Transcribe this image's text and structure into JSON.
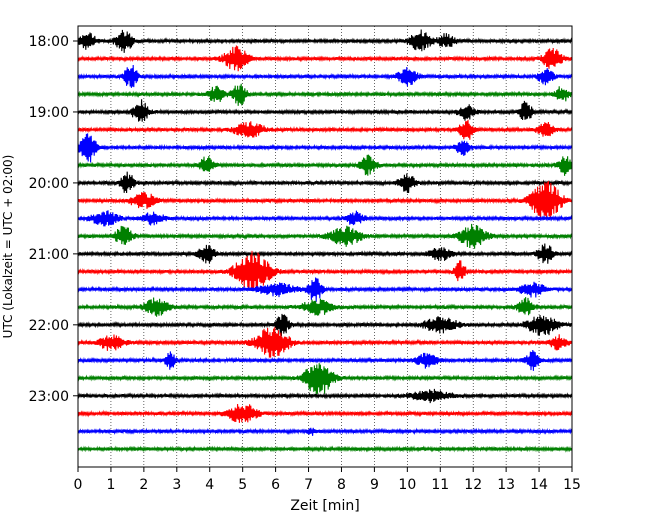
{
  "chart_data": {
    "type": "line",
    "title": "",
    "xlabel": "Zeit  [min]",
    "ylabel": "UTC (Lokalzeit = UTC + 02:00)",
    "xlim": [
      0,
      15
    ],
    "x_ticks": [
      0,
      1,
      2,
      3,
      4,
      5,
      6,
      7,
      8,
      9,
      10,
      11,
      12,
      13,
      14,
      15
    ],
    "y_ticks": [
      "18:00",
      "19:00",
      "20:00",
      "21:00",
      "22:00",
      "23:00"
    ],
    "row_interval_minutes": 15,
    "grid": "vertical dotted",
    "trace_colors": [
      "#000000",
      "#ff0000",
      "#0000ff",
      "#008000"
    ],
    "rows": [
      {
        "start": "18:00",
        "color": "#000000",
        "events": [
          {
            "t": 0.3,
            "a": 0.4,
            "w": 0.3
          },
          {
            "t": 1.4,
            "a": 0.55,
            "w": 0.3
          },
          {
            "t": 10.4,
            "a": 0.5,
            "w": 0.4
          },
          {
            "t": 11.2,
            "a": 0.35,
            "w": 0.3
          }
        ]
      },
      {
        "start": "18:15",
        "color": "#ff0000",
        "events": [
          {
            "t": 4.8,
            "a": 0.55,
            "w": 0.45
          },
          {
            "t": 14.4,
            "a": 0.5,
            "w": 0.35
          }
        ]
      },
      {
        "start": "18:30",
        "color": "#0000ff",
        "events": [
          {
            "t": 1.6,
            "a": 0.55,
            "w": 0.25
          },
          {
            "t": 10.0,
            "a": 0.45,
            "w": 0.35
          },
          {
            "t": 14.2,
            "a": 0.35,
            "w": 0.3
          }
        ]
      },
      {
        "start": "18:45",
        "color": "#008000",
        "events": [
          {
            "t": 4.2,
            "a": 0.4,
            "w": 0.3
          },
          {
            "t": 4.9,
            "a": 0.55,
            "w": 0.25
          },
          {
            "t": 14.7,
            "a": 0.4,
            "w": 0.25
          }
        ]
      },
      {
        "start": "19:00",
        "color": "#000000",
        "events": [
          {
            "t": 1.9,
            "a": 0.55,
            "w": 0.3
          },
          {
            "t": 11.8,
            "a": 0.35,
            "w": 0.3
          },
          {
            "t": 13.6,
            "a": 0.6,
            "w": 0.2
          }
        ]
      },
      {
        "start": "19:15",
        "color": "#ff0000",
        "events": [
          {
            "t": 5.2,
            "a": 0.35,
            "w": 0.55
          },
          {
            "t": 11.8,
            "a": 0.55,
            "w": 0.25
          },
          {
            "t": 14.2,
            "a": 0.35,
            "w": 0.3
          }
        ]
      },
      {
        "start": "19:30",
        "color": "#0000ff",
        "events": [
          {
            "t": 0.3,
            "a": 0.75,
            "w": 0.3
          },
          {
            "t": 11.7,
            "a": 0.4,
            "w": 0.25
          }
        ]
      },
      {
        "start": "19:45",
        "color": "#008000",
        "events": [
          {
            "t": 3.9,
            "a": 0.45,
            "w": 0.25
          },
          {
            "t": 8.8,
            "a": 0.45,
            "w": 0.3
          },
          {
            "t": 14.8,
            "a": 0.5,
            "w": 0.25
          }
        ]
      },
      {
        "start": "20:00",
        "color": "#000000",
        "events": [
          {
            "t": 1.5,
            "a": 0.5,
            "w": 0.25
          },
          {
            "t": 10.0,
            "a": 0.45,
            "w": 0.3
          }
        ]
      },
      {
        "start": "20:15",
        "color": "#ff0000",
        "events": [
          {
            "t": 2.0,
            "a": 0.35,
            "w": 0.5
          },
          {
            "t": 14.2,
            "a": 0.95,
            "w": 0.55
          }
        ]
      },
      {
        "start": "20:30",
        "color": "#0000ff",
        "events": [
          {
            "t": 0.8,
            "a": 0.35,
            "w": 0.5
          },
          {
            "t": 2.3,
            "a": 0.3,
            "w": 0.4
          },
          {
            "t": 8.4,
            "a": 0.3,
            "w": 0.35
          }
        ]
      },
      {
        "start": "20:45",
        "color": "#008000",
        "events": [
          {
            "t": 1.4,
            "a": 0.55,
            "w": 0.3
          },
          {
            "t": 8.1,
            "a": 0.45,
            "w": 0.6
          },
          {
            "t": 12.0,
            "a": 0.55,
            "w": 0.5
          }
        ]
      },
      {
        "start": "21:00",
        "color": "#000000",
        "events": [
          {
            "t": 3.9,
            "a": 0.45,
            "w": 0.3
          },
          {
            "t": 11.0,
            "a": 0.3,
            "w": 0.4
          },
          {
            "t": 14.2,
            "a": 0.45,
            "w": 0.3
          }
        ]
      },
      {
        "start": "21:15",
        "color": "#ff0000",
        "events": [
          {
            "t": 5.3,
            "a": 0.95,
            "w": 0.65
          },
          {
            "t": 11.6,
            "a": 0.5,
            "w": 0.2
          }
        ]
      },
      {
        "start": "21:30",
        "color": "#0000ff",
        "events": [
          {
            "t": 6.0,
            "a": 0.3,
            "w": 0.7
          },
          {
            "t": 7.2,
            "a": 0.6,
            "w": 0.25
          },
          {
            "t": 13.8,
            "a": 0.35,
            "w": 0.45
          }
        ]
      },
      {
        "start": "21:45",
        "color": "#008000",
        "events": [
          {
            "t": 2.4,
            "a": 0.45,
            "w": 0.45
          },
          {
            "t": 7.3,
            "a": 0.35,
            "w": 0.6
          },
          {
            "t": 13.6,
            "a": 0.45,
            "w": 0.3
          }
        ]
      },
      {
        "start": "22:00",
        "color": "#000000",
        "events": [
          {
            "t": 6.2,
            "a": 0.5,
            "w": 0.25
          },
          {
            "t": 11.0,
            "a": 0.4,
            "w": 0.6
          },
          {
            "t": 14.1,
            "a": 0.5,
            "w": 0.55
          }
        ]
      },
      {
        "start": "22:15",
        "color": "#ff0000",
        "events": [
          {
            "t": 1.0,
            "a": 0.35,
            "w": 0.5
          },
          {
            "t": 5.9,
            "a": 0.75,
            "w": 0.6
          },
          {
            "t": 14.6,
            "a": 0.35,
            "w": 0.3
          }
        ]
      },
      {
        "start": "22:30",
        "color": "#0000ff",
        "events": [
          {
            "t": 2.8,
            "a": 0.4,
            "w": 0.2
          },
          {
            "t": 10.6,
            "a": 0.35,
            "w": 0.4
          },
          {
            "t": 13.8,
            "a": 0.45,
            "w": 0.25
          }
        ]
      },
      {
        "start": "22:45",
        "color": "#008000",
        "events": [
          {
            "t": 7.3,
            "a": 0.85,
            "w": 0.5
          }
        ]
      },
      {
        "start": "23:00",
        "color": "#000000",
        "events": [
          {
            "t": 10.7,
            "a": 0.3,
            "w": 0.7
          }
        ]
      },
      {
        "start": "23:15",
        "color": "#ff0000",
        "events": [
          {
            "t": 5.0,
            "a": 0.45,
            "w": 0.55
          }
        ]
      },
      {
        "start": "23:30",
        "color": "#0000ff",
        "events": [
          {
            "t": 7.1,
            "a": 0.15,
            "w": 0.2
          }
        ]
      },
      {
        "start": "23:45",
        "color": "#008000",
        "events": []
      }
    ]
  }
}
